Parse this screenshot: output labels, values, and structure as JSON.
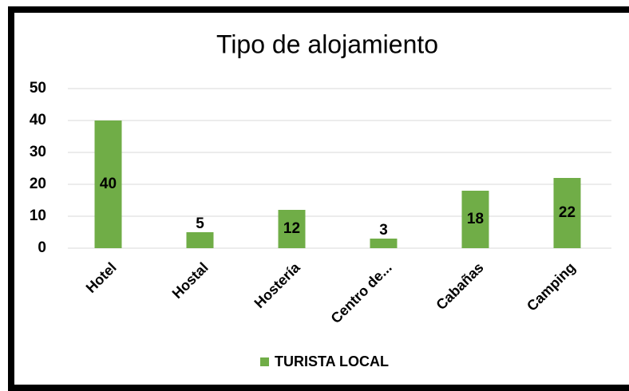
{
  "chart_data": {
    "type": "bar",
    "title": "Tipo de alojamiento",
    "categories": [
      "Hotel",
      "Hostal",
      "Hostería",
      "Centro de...",
      "Cabañas",
      "Camping"
    ],
    "series": [
      {
        "name": "TURISTA LOCAL",
        "color": "#70ad47",
        "values": [
          40,
          5,
          12,
          3,
          18,
          22
        ]
      }
    ],
    "ylim": [
      0,
      50
    ],
    "yticks": [
      0,
      10,
      20,
      30,
      40,
      50
    ],
    "grid": true,
    "legend": "bottom"
  }
}
